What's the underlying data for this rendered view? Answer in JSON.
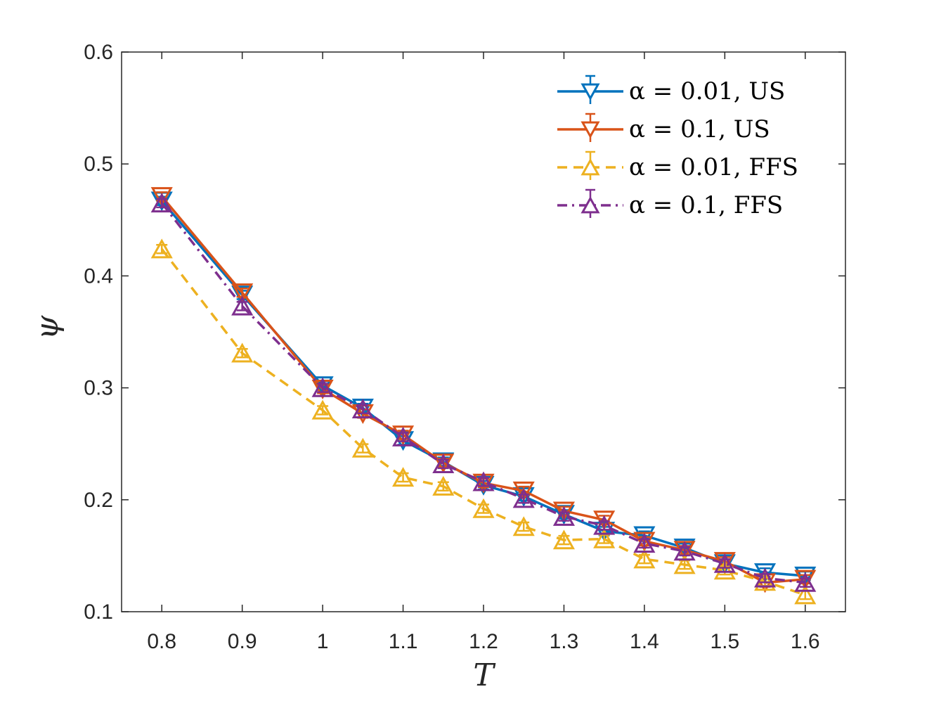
{
  "chart_data": {
    "type": "line",
    "title": "",
    "xlabel": "T",
    "ylabel": "ψ",
    "xlim": [
      0.75,
      1.65
    ],
    "ylim": [
      0.1,
      0.6
    ],
    "xticks": [
      0.8,
      0.9,
      1.0,
      1.1,
      1.2,
      1.3,
      1.4,
      1.5,
      1.6
    ],
    "xtick_labels": [
      "0.8",
      "0.9",
      "1",
      "1.1",
      "1.2",
      "1.3",
      "1.4",
      "1.5",
      "1.6"
    ],
    "yticks": [
      0.1,
      0.2,
      0.3,
      0.4,
      0.5,
      0.6
    ],
    "ytick_labels": [
      "0.1",
      "0.2",
      "0.3",
      "0.4",
      "0.5",
      "0.6"
    ],
    "grid": false,
    "legend_position": "top-right",
    "x": [
      0.8,
      0.9,
      1.0,
      1.05,
      1.1,
      1.15,
      1.2,
      1.25,
      1.3,
      1.35,
      1.4,
      1.45,
      1.5,
      1.55,
      1.6
    ],
    "series": [
      {
        "name": "α = 0.01, US",
        "color": "#0072BD",
        "line_style": "solid",
        "marker": "triangle-down",
        "values": [
          0.467,
          0.383,
          0.302,
          0.282,
          0.253,
          0.234,
          0.213,
          0.203,
          0.187,
          0.172,
          0.168,
          0.157,
          0.143,
          0.135,
          0.132
        ]
      },
      {
        "name": "α = 0.1, US",
        "color": "#D95319",
        "line_style": "solid",
        "marker": "triangle-down",
        "values": [
          0.471,
          0.385,
          0.299,
          0.277,
          0.258,
          0.233,
          0.215,
          0.208,
          0.19,
          0.182,
          0.163,
          0.155,
          0.145,
          0.126,
          0.129
        ]
      },
      {
        "name": "α = 0.01, FFS",
        "color": "#EDB120",
        "line_style": "dashed",
        "marker": "triangle-up",
        "values": [
          0.424,
          0.331,
          0.28,
          0.246,
          0.22,
          0.212,
          0.192,
          0.176,
          0.164,
          0.165,
          0.147,
          0.142,
          0.137,
          0.127,
          0.115
        ]
      },
      {
        "name": "α = 0.1, FFS",
        "color": "#7E2F8E",
        "line_style": "dashdot",
        "marker": "triangle-up",
        "values": [
          0.465,
          0.373,
          0.3,
          0.281,
          0.256,
          0.232,
          0.216,
          0.201,
          0.185,
          0.177,
          0.161,
          0.154,
          0.143,
          0.13,
          0.126
        ]
      }
    ]
  }
}
